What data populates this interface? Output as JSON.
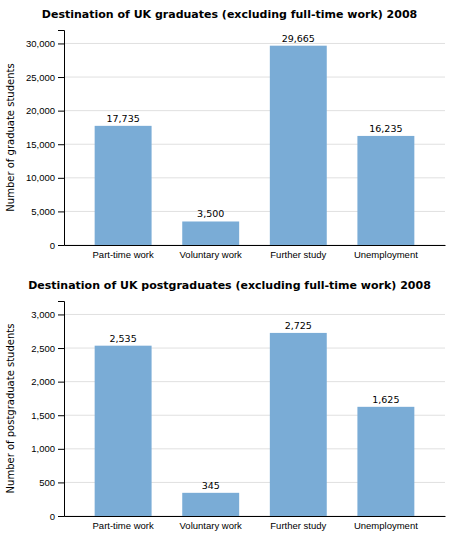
{
  "chart_data": [
    {
      "type": "bar",
      "title": "Destination of UK graduates (excluding full-time work) 2008",
      "ylabel": "Number of graduate students",
      "categories": [
        "Part-time work",
        "Voluntary work",
        "Further study",
        "Unemployment"
      ],
      "values": [
        17735,
        3500,
        29665,
        16235
      ],
      "value_labels": [
        "17,735",
        "3,500",
        "29,665",
        "16,235"
      ],
      "data_labels": true,
      "color": "#7aacd6",
      "ylim": [
        0,
        32000
      ],
      "yticks": [
        0,
        {
          "value": 5000,
          "label": "5,000"
        },
        {
          "value": 10000,
          "label": "10,000"
        },
        {
          "value": 15000,
          "label": "15,000"
        },
        {
          "value": 20000,
          "label": "20,000"
        },
        {
          "value": 25000,
          "label": "25,000"
        },
        {
          "value": 30000,
          "label": "30,000"
        }
      ],
      "grid": true
    },
    {
      "type": "bar",
      "title": "Destination of UK postgraduates (excluding full-time work) 2008",
      "ylabel": "Number of postgraduate students",
      "categories": [
        "Part-time work",
        "Voluntary work",
        "Further study",
        "Unemployment"
      ],
      "values": [
        2535,
        345,
        2725,
        1625
      ],
      "value_labels": [
        "2,535",
        "345",
        "2,725",
        "1,625"
      ],
      "data_labels": true,
      "color": "#7aacd6",
      "ylim": [
        0,
        3200
      ],
      "yticks": [
        0,
        500,
        {
          "value": 1000,
          "label": "1,000"
        },
        {
          "value": 1500,
          "label": "1,500"
        },
        {
          "value": 2000,
          "label": "2,000"
        },
        {
          "value": 2500,
          "label": "2,500"
        },
        {
          "value": 3000,
          "label": "3,000"
        }
      ],
      "grid": true
    }
  ]
}
